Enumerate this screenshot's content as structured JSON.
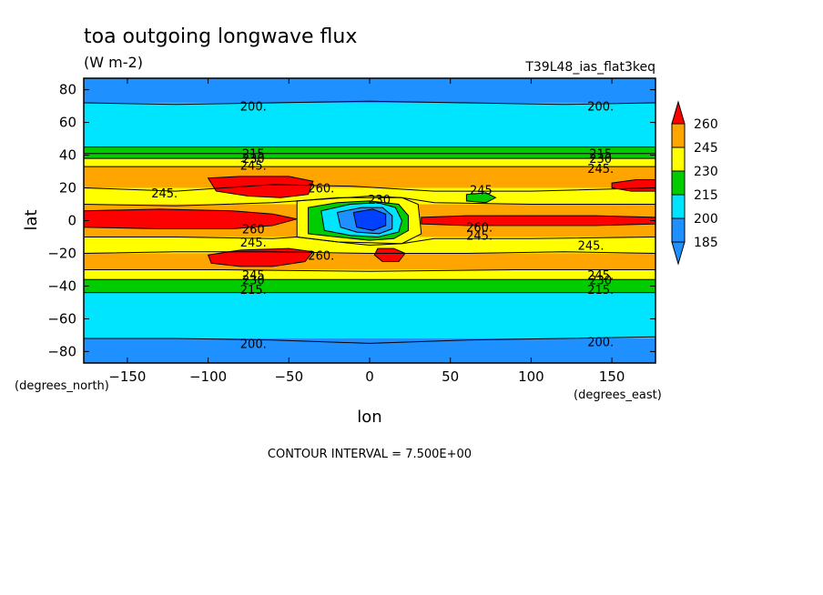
{
  "chart_data": {
    "type": "contour",
    "title": "toa outgoing longwave flux",
    "subtitle": "(W m-2)",
    "run_label": "T39L48_ias_flat3keq",
    "xlabel": "lon",
    "ylabel": "lat",
    "x_units": "(degrees_east)",
    "y_units": "(degrees_north)",
    "xlim": [
      -177,
      177
    ],
    "ylim": [
      -87,
      87
    ],
    "x_ticks": [
      -150,
      -100,
      -50,
      0,
      50,
      100,
      150
    ],
    "y_ticks": [
      -80,
      -60,
      -40,
      -20,
      0,
      20,
      40,
      60,
      80
    ],
    "contour_interval_text": "CONTOUR INTERVAL = 7.500E+00",
    "colorbar": {
      "levels": [
        185,
        200,
        215,
        230,
        245,
        260
      ],
      "colors": [
        "#1e90ff",
        "#00e5ff",
        "#00cc00",
        "#ffff00",
        "#ffa500",
        "#ff0000"
      ],
      "under_color": "#1e90ff",
      "over_color": "#ff0000"
    },
    "contour_labels": [
      {
        "text": "200.",
        "lon": -72,
        "lat": 70
      },
      {
        "text": "200.",
        "lon": 143,
        "lat": 70
      },
      {
        "text": "215",
        "lon": -72,
        "lat": 41
      },
      {
        "text": "230",
        "lon": -72,
        "lat": 38
      },
      {
        "text": "245.",
        "lon": -72,
        "lat": 34
      },
      {
        "text": "215",
        "lon": 143,
        "lat": 41
      },
      {
        "text": "230",
        "lon": 143,
        "lat": 38
      },
      {
        "text": "245.",
        "lon": 143,
        "lat": 32
      },
      {
        "text": "245.",
        "lon": -127,
        "lat": 17
      },
      {
        "text": "260.",
        "lon": -30,
        "lat": 20
      },
      {
        "text": "230",
        "lon": 6,
        "lat": 13
      },
      {
        "text": "245",
        "lon": 69,
        "lat": 19
      },
      {
        "text": "260",
        "lon": -72,
        "lat": -5
      },
      {
        "text": "245.",
        "lon": -72,
        "lat": -13
      },
      {
        "text": "260.",
        "lon": 68,
        "lat": -4
      },
      {
        "text": "245.",
        "lon": 68,
        "lat": -9
      },
      {
        "text": "245.",
        "lon": 137,
        "lat": -15
      },
      {
        "text": "260.",
        "lon": -30,
        "lat": -21
      },
      {
        "text": "245",
        "lon": -72,
        "lat": -33
      },
      {
        "text": "230",
        "lon": -72,
        "lat": -36
      },
      {
        "text": "215.",
        "lon": -72,
        "lat": -42
      },
      {
        "text": "245.",
        "lon": 143,
        "lat": -33
      },
      {
        "text": "230",
        "lon": 143,
        "lat": -36
      },
      {
        "text": "215.",
        "lon": 143,
        "lat": -42
      },
      {
        "text": "200.",
        "lon": -72,
        "lat": -75
      },
      {
        "text": "200.",
        "lon": 143,
        "lat": -74
      }
    ],
    "zonal_bands": [
      {
        "lat_top": 87,
        "lat_bottom": 72,
        "color": "#1e90ff"
      },
      {
        "lat_top": 72,
        "lat_bottom": 45,
        "color": "#00e5ff"
      },
      {
        "lat_top": 45,
        "lat_bottom": 38,
        "color": "#00cc00"
      },
      {
        "lat_top": 38,
        "lat_bottom": 33,
        "color": "#ffff00"
      },
      {
        "lat_top": 33,
        "lat_bottom": 20,
        "color": "#ffa500"
      },
      {
        "lat_top": 20,
        "lat_bottom": 10,
        "color": "#ffff00"
      },
      {
        "lat_top": 10,
        "lat_bottom": -10,
        "color": "#ffa500"
      },
      {
        "lat_top": -10,
        "lat_bottom": -20,
        "color": "#ffff00"
      },
      {
        "lat_top": -20,
        "lat_bottom": -30,
        "color": "#ffa500"
      },
      {
        "lat_top": -30,
        "lat_bottom": -36,
        "color": "#ffff00"
      },
      {
        "lat_top": -36,
        "lat_bottom": -44,
        "color": "#00cc00"
      },
      {
        "lat_top": -44,
        "lat_bottom": -72,
        "color": "#00e5ff"
      },
      {
        "lat_top": -72,
        "lat_bottom": -87,
        "color": "#1e90ff"
      }
    ],
    "regions": [
      {
        "color": "#ff0000",
        "points": [
          [
            -177,
            6
          ],
          [
            -130,
            7
          ],
          [
            -85,
            6
          ],
          [
            -60,
            4
          ],
          [
            -45,
            1
          ],
          [
            -60,
            -3
          ],
          [
            -85,
            -5
          ],
          [
            -130,
            -5
          ],
          [
            -177,
            -4
          ]
        ]
      },
      {
        "color": "#ff0000",
        "points": [
          [
            32,
            2
          ],
          [
            60,
            3
          ],
          [
            100,
            3
          ],
          [
            140,
            3
          ],
          [
            177,
            2
          ],
          [
            177,
            -2
          ],
          [
            140,
            -3
          ],
          [
            100,
            -3
          ],
          [
            60,
            -3
          ],
          [
            32,
            -2
          ]
        ]
      },
      {
        "color": "#ff0000",
        "points": [
          [
            -100,
            26
          ],
          [
            -80,
            27
          ],
          [
            -50,
            27
          ],
          [
            -35,
            24
          ],
          [
            -38,
            16
          ],
          [
            -55,
            14
          ],
          [
            -75,
            15
          ],
          [
            -95,
            18
          ]
        ]
      },
      {
        "color": "#ff0000",
        "points": [
          [
            -100,
            -21
          ],
          [
            -80,
            -18
          ],
          [
            -50,
            -17
          ],
          [
            -35,
            -19
          ],
          [
            -40,
            -25
          ],
          [
            -60,
            -28
          ],
          [
            -80,
            -28
          ],
          [
            -98,
            -26
          ]
        ]
      },
      {
        "color": "#ff0000",
        "points": [
          [
            5,
            -17
          ],
          [
            15,
            -17
          ],
          [
            22,
            -20
          ],
          [
            18,
            -25
          ],
          [
            8,
            -25
          ],
          [
            3,
            -21
          ]
        ]
      },
      {
        "color": "#ff0000",
        "points": [
          [
            150,
            23
          ],
          [
            165,
            25
          ],
          [
            177,
            25
          ],
          [
            177,
            18
          ],
          [
            162,
            18
          ],
          [
            150,
            20
          ]
        ]
      },
      {
        "color": "#00cc00",
        "points": [
          [
            60,
            16
          ],
          [
            72,
            17
          ],
          [
            78,
            14
          ],
          [
            72,
            11
          ],
          [
            60,
            12
          ]
        ]
      },
      {
        "color": "#ffff00",
        "points": [
          [
            -45,
            12
          ],
          [
            -15,
            14
          ],
          [
            0,
            15
          ],
          [
            20,
            14
          ],
          [
            30,
            10
          ],
          [
            32,
            -8
          ],
          [
            20,
            -14
          ],
          [
            0,
            -15
          ],
          [
            -20,
            -13
          ],
          [
            -45,
            -10
          ]
        ]
      },
      {
        "color": "#00cc00",
        "points": [
          [
            -38,
            8
          ],
          [
            -20,
            11
          ],
          [
            0,
            12
          ],
          [
            18,
            10
          ],
          [
            24,
            3
          ],
          [
            24,
            -6
          ],
          [
            15,
            -11
          ],
          [
            0,
            -12
          ],
          [
            -20,
            -10
          ],
          [
            -38,
            -8
          ]
        ]
      },
      {
        "color": "#00e5ff",
        "points": [
          [
            -30,
            6
          ],
          [
            -12,
            10
          ],
          [
            5,
            11
          ],
          [
            16,
            8
          ],
          [
            20,
            0
          ],
          [
            18,
            -7
          ],
          [
            5,
            -10
          ],
          [
            -12,
            -9
          ],
          [
            -28,
            -6
          ]
        ]
      },
      {
        "color": "#1e90ff",
        "points": [
          [
            -20,
            5
          ],
          [
            -5,
            8
          ],
          [
            8,
            8
          ],
          [
            14,
            3
          ],
          [
            14,
            -5
          ],
          [
            6,
            -8
          ],
          [
            -8,
            -7
          ],
          [
            -18,
            -4
          ]
        ]
      },
      {
        "color": "#0040ff",
        "points": [
          [
            -10,
            5
          ],
          [
            2,
            7
          ],
          [
            10,
            4
          ],
          [
            10,
            -3
          ],
          [
            2,
            -6
          ],
          [
            -8,
            -4
          ]
        ]
      }
    ],
    "contour_lines": [
      [
        [
          -177,
          72
        ],
        [
          -120,
          71
        ],
        [
          -60,
          72
        ],
        [
          0,
          73
        ],
        [
          60,
          72
        ],
        [
          120,
          71
        ],
        [
          177,
          72
        ]
      ],
      [
        [
          -177,
          45
        ],
        [
          -120,
          45
        ],
        [
          -60,
          45
        ],
        [
          0,
          45
        ],
        [
          60,
          45
        ],
        [
          120,
          45
        ],
        [
          177,
          45
        ]
      ],
      [
        [
          -177,
          41
        ],
        [
          -90,
          41
        ],
        [
          0,
          41
        ],
        [
          90,
          41
        ],
        [
          177,
          41
        ]
      ],
      [
        [
          -177,
          38
        ],
        [
          -90,
          38
        ],
        [
          0,
          38
        ],
        [
          90,
          38
        ],
        [
          177,
          38
        ]
      ],
      [
        [
          -177,
          33
        ],
        [
          -90,
          33
        ],
        [
          0,
          33
        ],
        [
          90,
          33
        ],
        [
          177,
          33
        ]
      ],
      [
        [
          -177,
          20
        ],
        [
          -120,
          18
        ],
        [
          -60,
          22
        ],
        [
          -10,
          21
        ],
        [
          40,
          18
        ],
        [
          100,
          18
        ],
        [
          177,
          20
        ]
      ],
      [
        [
          -177,
          10
        ],
        [
          -120,
          9
        ],
        [
          -60,
          11
        ],
        [
          -45,
          12
        ],
        [
          -20,
          14
        ],
        [
          20,
          14
        ],
        [
          40,
          11
        ],
        [
          100,
          10
        ],
        [
          177,
          10
        ]
      ],
      [
        [
          -177,
          -10
        ],
        [
          -120,
          -10
        ],
        [
          -60,
          -11
        ],
        [
          -45,
          -10
        ],
        [
          -20,
          -13
        ],
        [
          20,
          -14
        ],
        [
          40,
          -11
        ],
        [
          100,
          -11
        ],
        [
          177,
          -10
        ]
      ],
      [
        [
          -177,
          -20
        ],
        [
          -120,
          -19
        ],
        [
          -60,
          -19
        ],
        [
          0,
          -20
        ],
        [
          60,
          -20
        ],
        [
          120,
          -19
        ],
        [
          177,
          -20
        ]
      ],
      [
        [
          -177,
          -30
        ],
        [
          -90,
          -30
        ],
        [
          0,
          -31
        ],
        [
          90,
          -30
        ],
        [
          177,
          -30
        ]
      ],
      [
        [
          -177,
          -36
        ],
        [
          -90,
          -36
        ],
        [
          0,
          -36
        ],
        [
          90,
          -36
        ],
        [
          177,
          -36
        ]
      ],
      [
        [
          -177,
          -44
        ],
        [
          -90,
          -44
        ],
        [
          0,
          -44
        ],
        [
          90,
          -44
        ],
        [
          177,
          -44
        ]
      ],
      [
        [
          -177,
          -72
        ],
        [
          -120,
          -72
        ],
        [
          -60,
          -73
        ],
        [
          0,
          -75
        ],
        [
          60,
          -73
        ],
        [
          120,
          -72
        ],
        [
          177,
          -71
        ]
      ]
    ]
  }
}
